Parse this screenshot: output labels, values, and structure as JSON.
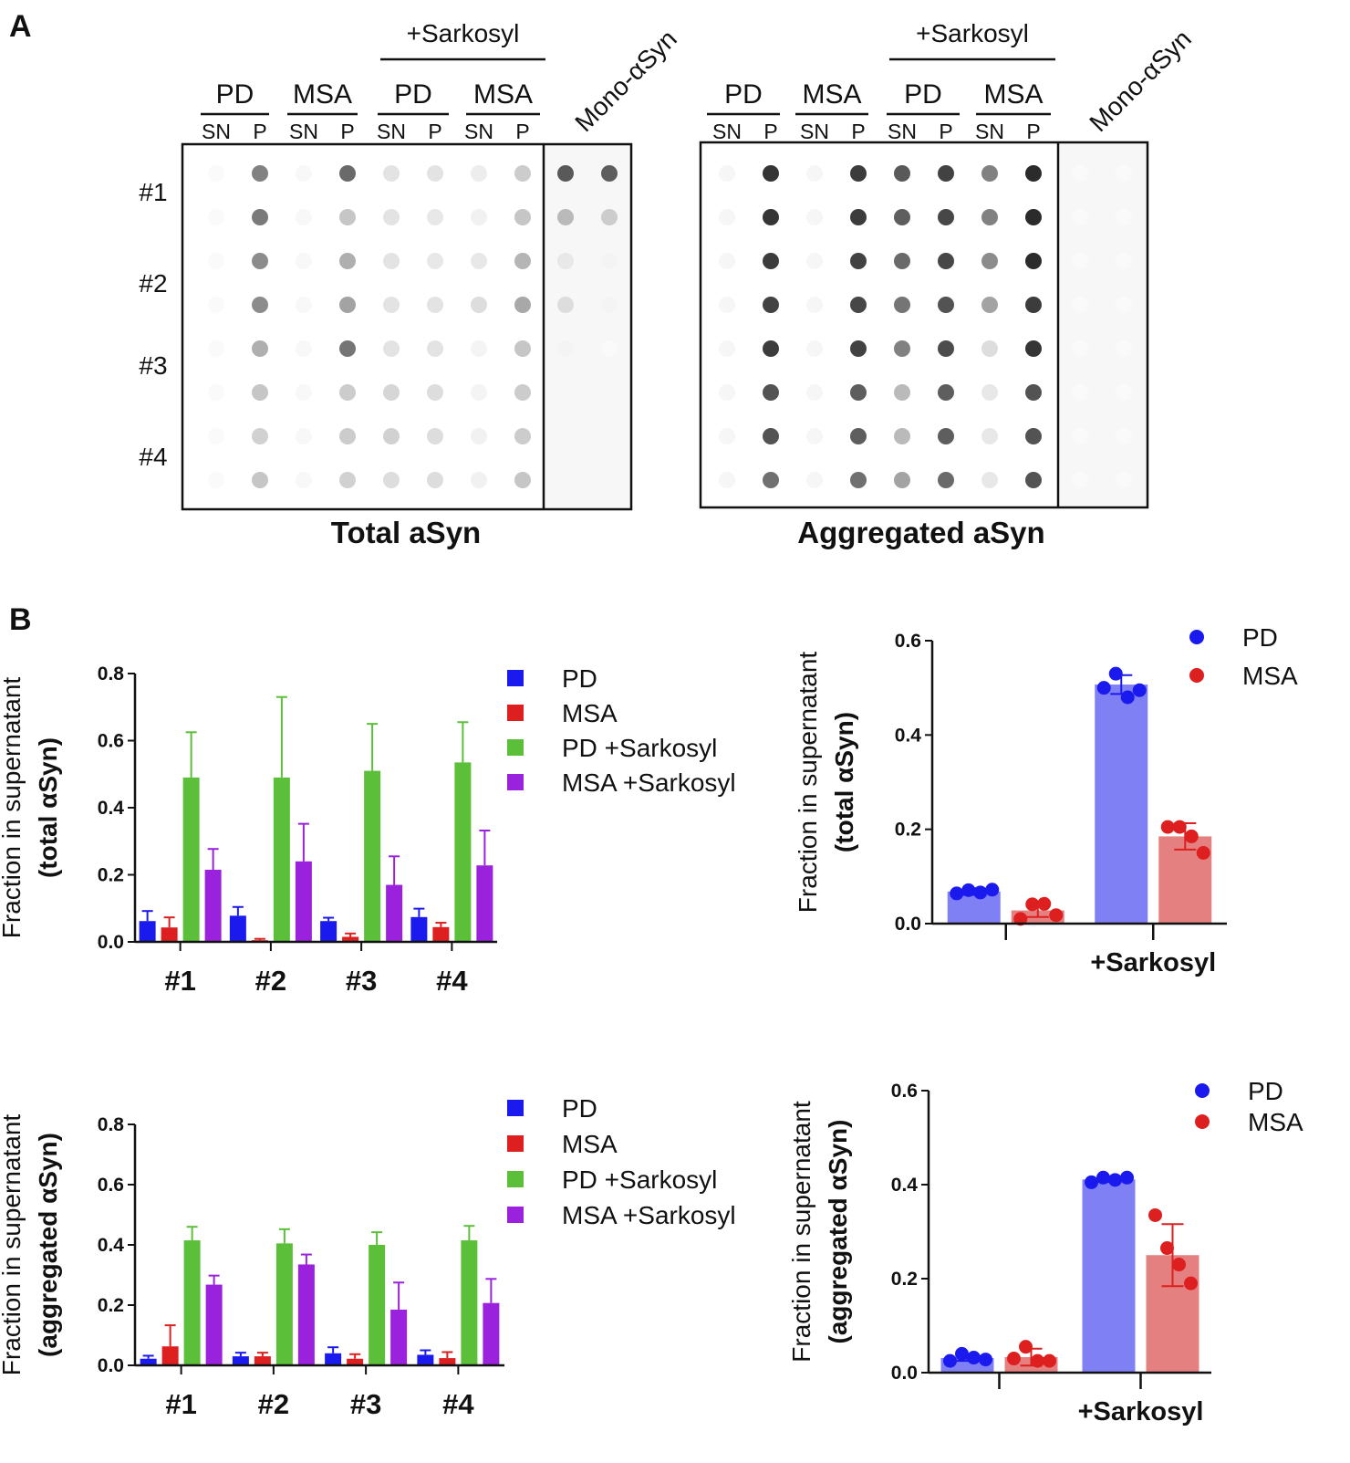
{
  "panel_labels": [
    "A",
    "B"
  ],
  "blots": [
    {
      "title": "Total aSyn",
      "sarkosyl_label": "+Sarkosyl",
      "mono_label": "Mono-αSyn",
      "groups": [
        "PD",
        "MSA",
        "PD",
        "MSA"
      ],
      "lanes": [
        "SN",
        "P",
        "SN",
        "P",
        "SN",
        "P",
        "SN",
        "P"
      ],
      "row_labels": [
        "#1",
        "#2",
        "#3",
        "#4"
      ],
      "intensity": [
        [
          0.02,
          0.55,
          0.03,
          0.65,
          0.12,
          0.12,
          0.08,
          0.22,
          0.72,
          0.7
        ],
        [
          0.02,
          0.58,
          0.03,
          0.25,
          0.12,
          0.1,
          0.06,
          0.25,
          0.3,
          0.22
        ],
        [
          0.02,
          0.5,
          0.03,
          0.35,
          0.12,
          0.1,
          0.1,
          0.32,
          0.1,
          0.05
        ],
        [
          0.02,
          0.5,
          0.03,
          0.4,
          0.12,
          0.12,
          0.15,
          0.38,
          0.15,
          0.05
        ],
        [
          0.02,
          0.35,
          0.03,
          0.6,
          0.12,
          0.12,
          0.05,
          0.25,
          0.05,
          0.02
        ],
        [
          0.02,
          0.25,
          0.03,
          0.22,
          0.18,
          0.15,
          0.05,
          0.22,
          0.0,
          0.0
        ],
        [
          0.02,
          0.2,
          0.03,
          0.22,
          0.2,
          0.15,
          0.06,
          0.22,
          0.0,
          0.0
        ],
        [
          0.02,
          0.25,
          0.03,
          0.2,
          0.15,
          0.15,
          0.06,
          0.25,
          0.0,
          0.0
        ]
      ]
    },
    {
      "title": "Aggregated aSyn",
      "sarkosyl_label": "+Sarkosyl",
      "mono_label": "Mono-αSyn",
      "groups": [
        "PD",
        "MSA",
        "PD",
        "MSA"
      ],
      "lanes": [
        "SN",
        "P",
        "SN",
        "P",
        "SN",
        "P",
        "SN",
        "P"
      ],
      "row_labels": [],
      "intensity": [
        [
          0.04,
          0.88,
          0.04,
          0.85,
          0.72,
          0.82,
          0.55,
          0.92,
          0.02,
          0.02
        ],
        [
          0.04,
          0.88,
          0.04,
          0.85,
          0.7,
          0.8,
          0.55,
          0.92,
          0.02,
          0.02
        ],
        [
          0.04,
          0.85,
          0.04,
          0.82,
          0.65,
          0.8,
          0.5,
          0.92,
          0.02,
          0.02
        ],
        [
          0.04,
          0.82,
          0.04,
          0.8,
          0.6,
          0.75,
          0.4,
          0.85,
          0.02,
          0.02
        ],
        [
          0.04,
          0.85,
          0.04,
          0.82,
          0.55,
          0.78,
          0.15,
          0.88,
          0.02,
          0.02
        ],
        [
          0.04,
          0.75,
          0.04,
          0.7,
          0.3,
          0.7,
          0.1,
          0.75,
          0.02,
          0.02
        ],
        [
          0.04,
          0.75,
          0.04,
          0.7,
          0.3,
          0.7,
          0.1,
          0.75,
          0.02,
          0.02
        ],
        [
          0.04,
          0.62,
          0.04,
          0.62,
          0.4,
          0.65,
          0.1,
          0.75,
          0.02,
          0.02
        ]
      ]
    }
  ],
  "chart_data": [
    {
      "type": "bar",
      "categories": [
        "#1",
        "#2",
        "#3",
        "#4"
      ],
      "ylabel": [
        "Fraction in supernatant",
        "(total αSyn)"
      ],
      "ylim": [
        0,
        0.8
      ],
      "yticks": [
        "0.0",
        "0.2",
        "0.4",
        "0.6",
        "0.8"
      ],
      "legend_position": "right",
      "series": [
        {
          "name": "PD",
          "color": "#1a1aee",
          "values": [
            0.062,
            0.078,
            0.062,
            0.074
          ],
          "errors": [
            0.03,
            0.026,
            0.01,
            0.025
          ]
        },
        {
          "name": "MSA",
          "color": "#dd1f1f",
          "values": [
            0.043,
            0.005,
            0.015,
            0.044
          ],
          "errors": [
            0.03,
            0.004,
            0.01,
            0.013
          ]
        },
        {
          "name": "PD +Sarkosyl",
          "color": "#5cbf3a",
          "values": [
            0.49,
            0.49,
            0.51,
            0.535
          ],
          "errors": [
            0.135,
            0.24,
            0.14,
            0.12
          ]
        },
        {
          "name": "MSA +Sarkosyl",
          "color": "#9a22dd",
          "values": [
            0.215,
            0.24,
            0.17,
            0.228
          ],
          "errors": [
            0.062,
            0.112,
            0.085,
            0.104
          ]
        }
      ]
    },
    {
      "type": "bar",
      "categories": [
        "",
        "+Sarkosyl"
      ],
      "ylabel": [
        "Fraction in supernatant",
        "(total αSyn)"
      ],
      "ylim": [
        0,
        0.6
      ],
      "yticks": [
        "0.0",
        "0.2",
        "0.4",
        "0.6"
      ],
      "legend_position": "top-right",
      "series": [
        {
          "name": "PD",
          "color": "#1a1aee",
          "bar_color": "#8080f5",
          "values": [
            0.068,
            0.507
          ],
          "errors": [
            0.007,
            0.02
          ],
          "points": [
            [
              0.064,
              0.071,
              0.066,
              0.072
            ],
            [
              0.5,
              0.53,
              0.48,
              0.495
            ]
          ]
        },
        {
          "name": "MSA",
          "color": "#dd1f1f",
          "bar_color": "#e48080",
          "values": [
            0.028,
            0.185
          ],
          "errors": [
            0.014,
            0.028
          ],
          "points": [
            [
              0.01,
              0.041,
              0.042,
              0.018
            ],
            [
              0.205,
              0.205,
              0.185,
              0.15
            ]
          ]
        }
      ]
    },
    {
      "type": "bar",
      "categories": [
        "#1",
        "#2",
        "#3",
        "#4"
      ],
      "ylabel": [
        "Fraction in supernatant",
        "(aggregated αSyn)"
      ],
      "ylim": [
        0,
        0.8
      ],
      "yticks": [
        "0.0",
        "0.2",
        "0.4",
        "0.6",
        "0.8"
      ],
      "legend_position": "right",
      "series": [
        {
          "name": "PD",
          "color": "#1a1aee",
          "values": [
            0.022,
            0.03,
            0.04,
            0.035
          ],
          "errors": [
            0.01,
            0.012,
            0.02,
            0.015
          ]
        },
        {
          "name": "MSA",
          "color": "#dd1f1f",
          "values": [
            0.063,
            0.03,
            0.022,
            0.024
          ],
          "errors": [
            0.07,
            0.012,
            0.015,
            0.02
          ]
        },
        {
          "name": "PD +Sarkosyl",
          "color": "#5cbf3a",
          "values": [
            0.415,
            0.405,
            0.4,
            0.415
          ],
          "errors": [
            0.045,
            0.047,
            0.042,
            0.048
          ]
        },
        {
          "name": "MSA +Sarkosyl",
          "color": "#9a22dd",
          "values": [
            0.268,
            0.335,
            0.185,
            0.207
          ],
          "errors": [
            0.03,
            0.033,
            0.09,
            0.08
          ]
        }
      ]
    },
    {
      "type": "bar",
      "categories": [
        "",
        "+Sarkosyl"
      ],
      "ylabel": [
        "Fraction in supernatant",
        "(aggregated αSyn)"
      ],
      "ylim": [
        0,
        0.6
      ],
      "yticks": [
        "0.0",
        "0.2",
        "0.4",
        "0.6"
      ],
      "legend_position": "top-right",
      "series": [
        {
          "name": "PD",
          "color": "#1a1aee",
          "bar_color": "#8080f5",
          "values": [
            0.031,
            0.411
          ],
          "errors": [
            0.006,
            0.005
          ],
          "points": [
            [
              0.025,
              0.04,
              0.032,
              0.028
            ],
            [
              0.405,
              0.415,
              0.41,
              0.415
            ]
          ]
        },
        {
          "name": "MSA",
          "color": "#dd1f1f",
          "bar_color": "#e48080",
          "values": [
            0.033,
            0.25
          ],
          "errors": [
            0.018,
            0.066
          ],
          "points": [
            [
              0.03,
              0.055,
              0.025,
              0.025
            ],
            [
              0.335,
              0.265,
              0.23,
              0.19
            ]
          ]
        }
      ]
    }
  ]
}
